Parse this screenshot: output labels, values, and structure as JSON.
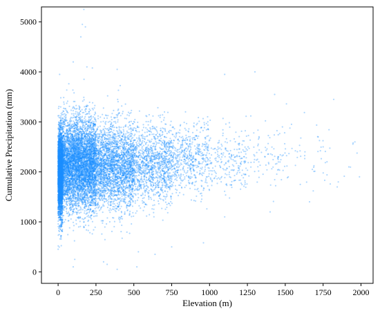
{
  "chart_data": {
    "type": "scatter",
    "xlabel": "Elevation (m)",
    "ylabel": "Cumulative Precipitation (mm)",
    "xlim": [
      -110,
      2080
    ],
    "ylim": [
      -230,
      5300
    ],
    "x_ticks": [
      0,
      250,
      500,
      750,
      1000,
      1250,
      1500,
      1750,
      2000
    ],
    "y_ticks": [
      0,
      1000,
      2000,
      3000,
      4000,
      5000
    ],
    "grid": false,
    "legend": "none",
    "point_color": "#1e90ff",
    "point_opacity": 0.35,
    "series": [
      {
        "distribution": [
          {
            "elev_min": 0,
            "elev_max": 30,
            "precip_mean": 1950,
            "precip_sd": 430,
            "count": 3200
          },
          {
            "elev_min": 30,
            "elev_max": 250,
            "precip_mean": 2150,
            "precip_sd": 450,
            "count": 5200
          },
          {
            "elev_min": 250,
            "elev_max": 500,
            "precip_mean": 2100,
            "precip_sd": 430,
            "count": 2600
          },
          {
            "elev_min": 500,
            "elev_max": 750,
            "precip_mean": 2150,
            "precip_sd": 380,
            "count": 1200
          },
          {
            "elev_min": 750,
            "elev_max": 1000,
            "precip_mean": 2250,
            "precip_sd": 340,
            "count": 550
          },
          {
            "elev_min": 1000,
            "elev_max": 1250,
            "precip_mean": 2250,
            "precip_sd": 330,
            "count": 220
          },
          {
            "elev_min": 1250,
            "elev_max": 1500,
            "precip_mean": 2300,
            "precip_sd": 330,
            "count": 90
          },
          {
            "elev_min": 1500,
            "elev_max": 1750,
            "precip_mean": 2350,
            "precip_sd": 340,
            "count": 40
          },
          {
            "elev_min": 1750,
            "elev_max": 1990,
            "precip_mean": 2250,
            "precip_sd": 320,
            "count": 15
          }
        ],
        "notable_points": [
          {
            "x": 170,
            "y": 5250
          },
          {
            "x": 160,
            "y": 4950
          },
          {
            "x": 180,
            "y": 4900
          },
          {
            "x": 150,
            "y": 4700
          },
          {
            "x": 10,
            "y": 3950
          },
          {
            "x": 100,
            "y": 4200
          },
          {
            "x": 190,
            "y": 4100
          },
          {
            "x": 390,
            "y": 4050
          },
          {
            "x": 1300,
            "y": 4000
          },
          {
            "x": 1100,
            "y": 3950
          },
          {
            "x": 1430,
            "y": 3550
          },
          {
            "x": 1820,
            "y": 3450
          },
          {
            "x": 1960,
            "y": 2600
          },
          {
            "x": 1990,
            "y": 1900
          },
          {
            "x": 1920,
            "y": 2100
          },
          {
            "x": 1750,
            "y": 2500
          },
          {
            "x": 1850,
            "y": 1800
          },
          {
            "x": 100,
            "y": 100
          },
          {
            "x": 110,
            "y": 250
          },
          {
            "x": 390,
            "y": 50
          },
          {
            "x": 520,
            "y": 100
          },
          {
            "x": 530,
            "y": 400
          },
          {
            "x": 640,
            "y": 350
          },
          {
            "x": 300,
            "y": 200
          },
          {
            "x": 750,
            "y": 500
          },
          {
            "x": 960,
            "y": 580
          },
          {
            "x": 1100,
            "y": 1100
          },
          {
            "x": 1400,
            "y": 1200
          }
        ]
      }
    ]
  }
}
